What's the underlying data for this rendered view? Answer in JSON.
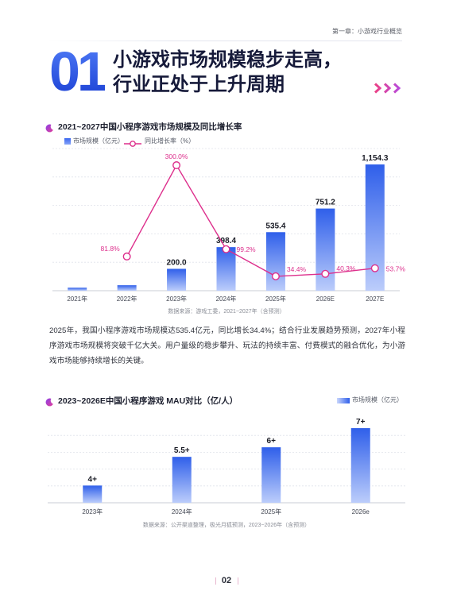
{
  "header": {
    "chapter": "第一章：小游戏行业概览"
  },
  "hero": {
    "number": "01",
    "title_lines": [
      "小游戏市场规模稳步走高，",
      "行业正处于上升周期"
    ]
  },
  "icons": {
    "title_decoration": "triple-chevron-icon",
    "chart_title_marker": "crescent-icon"
  },
  "colors": {
    "title": "#161a3a",
    "section_number": "#2450e0",
    "bar_top": "#2f5fea",
    "bar_bottom": "#bccdfb",
    "line": "#dd2f8c"
  },
  "body_text": "2025年，我国小程序游戏市场规模达535.4亿元，同比增长34.4%；结合行业发展趋势预测，2027年小程序游戏市场规模将突破千亿大关。用户量级的稳步攀升、玩法的持续丰富、付费模式的融合优化，为小游戏市场能够持续增长的关键。",
  "chart_data": [
    {
      "type": "bar",
      "title": "2021~2027中国小程序游戏市场规模及同比增长率",
      "categories": [
        "2021年",
        "2022年",
        "2023年",
        "2024年",
        "2025年",
        "2026E",
        "2027E"
      ],
      "series": [
        {
          "name": "市场规模（亿元）",
          "type": "bar",
          "values": [
            27.5,
            50.0,
            200.0,
            398.4,
            535.4,
            751.2,
            1154.3
          ],
          "labels": [
            null,
            null,
            "200.0",
            "398.4",
            "535.4",
            "751.2",
            "1,154.3"
          ]
        },
        {
          "name": "同比增长率（%）",
          "type": "line",
          "values": [
            null,
            81.8,
            300.0,
            99.2,
            34.4,
            40.3,
            53.7
          ],
          "labels": [
            null,
            "81.8%",
            "300.0%",
            "99.2%",
            "34.4%",
            "40.3%",
            "53.7%"
          ]
        }
      ],
      "ylim": [
        0,
        1300
      ],
      "y2lim": [
        0,
        340
      ],
      "grid": true,
      "legend": "top-left",
      "source": "数据来源：游戏工委，2021~2027年（含预测）"
    },
    {
      "type": "bar",
      "title": "2023~2026E中国小程序游戏 MAU对比（亿/人）",
      "categories": [
        "2023年",
        "2024年",
        "2025年",
        "2026e"
      ],
      "series": [
        {
          "name": "市场规模（亿元）",
          "type": "bar",
          "values": [
            4,
            5.5,
            6,
            7
          ],
          "labels": [
            "4+",
            "5.5+",
            "6+",
            "7+"
          ]
        }
      ],
      "ylim": [
        3.1,
        7.5
      ],
      "grid": true,
      "legend": "top-right",
      "source": "数据来源：公开渠道整理，极光月狐预测，2023~2026年（含预测）"
    }
  ],
  "footer": {
    "page_number": "02"
  }
}
